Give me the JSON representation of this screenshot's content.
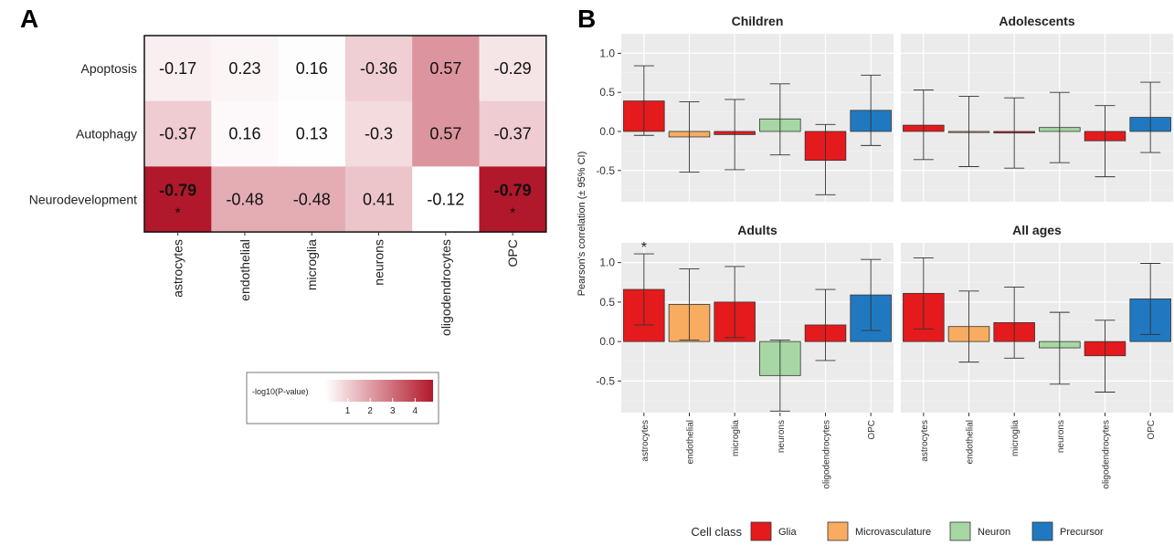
{
  "panel_labels": [
    "A",
    "B"
  ],
  "chart_data": [
    {
      "type": "heatmap",
      "rows": [
        "Apoptosis",
        "Autophagy",
        "Neurodevelopment"
      ],
      "columns": [
        "astrocytes",
        "endothelial",
        "microglia",
        "neurons",
        "oligodendrocytes",
        "OPC"
      ],
      "values": [
        [
          "-0.17",
          "0.23",
          "0.16",
          "-0.36",
          "0.57",
          "-0.29"
        ],
        [
          "-0.37",
          "0.16",
          "0.13",
          "-0.3",
          "0.57",
          "-0.37"
        ],
        [
          "-0.79",
          "-0.48",
          "-0.48",
          "0.41",
          "-0.12",
          "-0.79"
        ]
      ],
      "neg_log10_p": [
        [
          0.35,
          0.2,
          0.05,
          1.0,
          2.2,
          0.55
        ],
        [
          1.05,
          0.12,
          0.02,
          0.75,
          2.2,
          1.05
        ],
        [
          4.8,
          1.7,
          1.7,
          1.2,
          0.0,
          4.8
        ]
      ],
      "significant": [
        [
          false,
          false,
          false,
          false,
          false,
          false
        ],
        [
          false,
          false,
          false,
          false,
          false,
          false
        ],
        [
          true,
          false,
          false,
          false,
          false,
          true
        ]
      ],
      "significance_marker": "*",
      "legend": {
        "title": "-log10(P-value)",
        "ticks": [
          "1",
          "2",
          "3",
          "4"
        ],
        "range": [
          0,
          4.8
        ],
        "color_low": "#ffffff",
        "color_high": "#b2182b"
      }
    },
    {
      "type": "bar",
      "facets": [
        "Children",
        "Adolescents",
        "Adults",
        "All ages"
      ],
      "categories": [
        "astrocytes",
        "endothelial",
        "microglia",
        "neurons",
        "oligodendrocytes",
        "OPC"
      ],
      "cell_class": [
        "Glia",
        "Microvasculature",
        "Glia",
        "Neuron",
        "Glia",
        "Precursor"
      ],
      "series": [
        {
          "name": "Children",
          "values": [
            0.39,
            -0.07,
            -0.04,
            0.16,
            -0.37,
            0.27
          ],
          "ci_low": [
            -0.05,
            -0.52,
            -0.49,
            -0.3,
            -0.81,
            -0.18
          ],
          "ci_high": [
            0.84,
            0.38,
            0.41,
            0.61,
            0.09,
            0.72
          ],
          "significant": []
        },
        {
          "name": "Adolescents",
          "values": [
            0.08,
            0.0,
            -0.02,
            0.05,
            -0.12,
            0.18
          ],
          "ci_low": [
            -0.36,
            -0.45,
            -0.47,
            -0.4,
            -0.58,
            -0.27
          ],
          "ci_high": [
            0.53,
            0.45,
            0.43,
            0.5,
            0.33,
            0.63
          ],
          "significant": []
        },
        {
          "name": "Adults",
          "values": [
            0.66,
            0.47,
            0.5,
            -0.43,
            0.21,
            0.59
          ],
          "ci_low": [
            0.21,
            0.02,
            0.05,
            -0.88,
            -0.24,
            0.14
          ],
          "ci_high": [
            1.11,
            0.92,
            0.95,
            0.02,
            0.66,
            1.04
          ],
          "significant": [
            "astrocytes"
          ]
        },
        {
          "name": "All ages",
          "values": [
            0.61,
            0.19,
            0.24,
            -0.08,
            -0.18,
            0.54
          ],
          "ci_low": [
            0.16,
            -0.26,
            -0.21,
            -0.54,
            -0.64,
            0.09
          ],
          "ci_high": [
            1.06,
            0.64,
            0.69,
            0.37,
            0.27,
            0.99
          ],
          "significant": []
        }
      ],
      "ylabel": "Pearson's correlation (± 95% CI)",
      "ylim": [
        -0.9,
        1.25
      ],
      "yticks": [
        -0.5,
        0.0,
        0.5,
        1.0
      ],
      "ytick_labels": [
        "-0.5",
        "0.0",
        "0.5",
        "1.0"
      ],
      "grid": true,
      "significance_marker": "*",
      "legend": {
        "title": "Cell class",
        "placement": "bottom",
        "entries": [
          {
            "name": "Glia",
            "color": "#e41a1c"
          },
          {
            "name": "Microvasculature",
            "color": "#f7ac60"
          },
          {
            "name": "Neuron",
            "color": "#a7d7a4"
          },
          {
            "name": "Precursor",
            "color": "#2079c0"
          }
        ]
      }
    }
  ]
}
